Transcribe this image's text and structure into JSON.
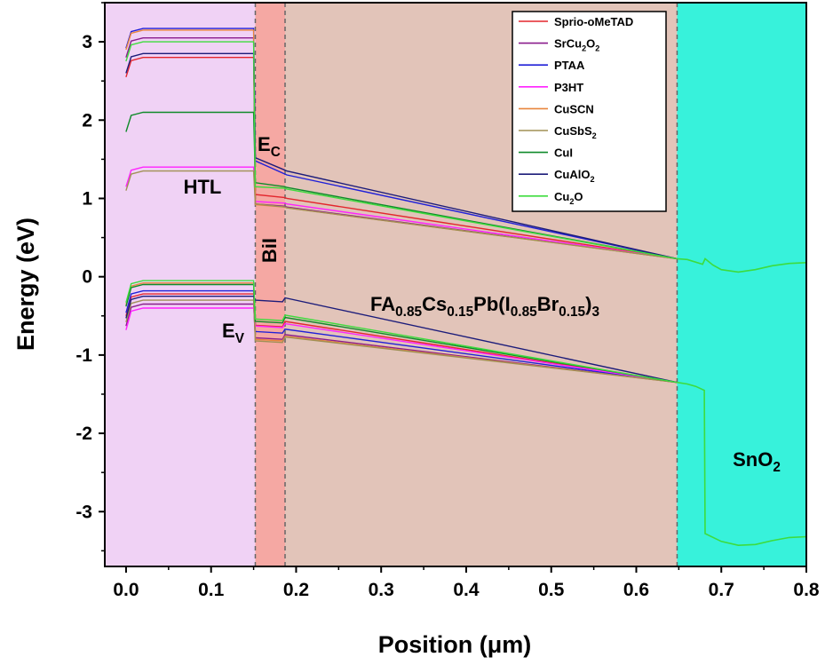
{
  "chart_data": {
    "type": "line",
    "title": "",
    "xlabel": "Position (μm)",
    "ylabel": "Energy (eV)",
    "xlim": [
      -0.025,
      0.8
    ],
    "ylim": [
      -3.7,
      3.5
    ],
    "xticks": [
      0.0,
      0.1,
      0.2,
      0.3,
      0.4,
      0.5,
      0.6,
      0.7,
      0.8
    ],
    "xtick_labels": [
      "0.0",
      "0.1",
      "0.2",
      "0.3",
      "0.4",
      "0.5",
      "0.6",
      "0.7",
      "0.8"
    ],
    "yticks": [
      -3,
      -2,
      -1,
      0,
      1,
      2,
      3
    ],
    "ytick_labels": [
      "-3",
      "-2",
      "-1",
      "0",
      "1",
      "2",
      "3"
    ],
    "grid": false,
    "legend_position": "top-right",
    "regions": [
      {
        "key": "htl",
        "x0": -0.025,
        "x1": 0.152,
        "color": "#f0d2f5",
        "label": "HTL"
      },
      {
        "key": "bil",
        "x0": 0.152,
        "x1": 0.187,
        "color": "#f5a8a3",
        "label": "BiI"
      },
      {
        "key": "perovskite",
        "x0": 0.187,
        "x1": 0.648,
        "color": "#e2c4b9",
        "label": "FA0.85Cs0.15Pb(I0.85Br0.15)3"
      },
      {
        "key": "etl",
        "x0": 0.648,
        "x1": 0.8,
        "color": "#37f2db",
        "label": "SnO2"
      }
    ],
    "annotations": [
      {
        "key": "ec",
        "text": "EC"
      },
      {
        "key": "ev",
        "text": "EV"
      }
    ],
    "series": [
      {
        "name": "Sprio-oMeTAD",
        "color": "#e3262d",
        "htl_ec": 2.8,
        "htl_ev": -0.22,
        "bil_ec": 1.05,
        "bil_ev": -0.62,
        "pero_ec": 1.0,
        "pero_ev": -0.57
      },
      {
        "name": "SrCu2O2",
        "color": "#8a1c8c",
        "htl_ec": 3.05,
        "htl_ev": -0.35,
        "bil_ec": 0.93,
        "bil_ev": -0.78,
        "pero_ec": 0.89,
        "pero_ev": -0.74
      },
      {
        "name": "PTAA",
        "color": "#2020d8",
        "htl_ec": 3.17,
        "htl_ev": -0.18,
        "bil_ec": 1.48,
        "bil_ev": -0.7,
        "pero_ec": 1.3,
        "pero_ev": -0.67
      },
      {
        "name": "P3HT",
        "color": "#ff22ff",
        "htl_ec": 1.4,
        "htl_ev": -0.4,
        "bil_ec": 0.96,
        "bil_ev": -0.63,
        "pero_ec": 0.93,
        "pero_ev": -0.6
      },
      {
        "name": "CuSCN",
        "color": "#e8853c",
        "htl_ec": 3.15,
        "htl_ev": -0.08,
        "bil_ec": 0.92,
        "bil_ev": -0.8,
        "pero_ec": 0.88,
        "pero_ev": -0.76
      },
      {
        "name": "CuSbS2",
        "color": "#a09055",
        "htl_ec": 1.35,
        "htl_ev": -0.3,
        "bil_ec": 0.93,
        "bil_ev": -0.82,
        "pero_ec": 0.88,
        "pero_ev": -0.77
      },
      {
        "name": "CuI",
        "color": "#0f8a2a",
        "htl_ec": 2.1,
        "htl_ev": -0.1,
        "bil_ec": 1.2,
        "bil_ev": -0.57,
        "pero_ec": 1.14,
        "pero_ev": -0.52
      },
      {
        "name": "CuAlO2",
        "color": "#1c1c7a",
        "htl_ec": 2.85,
        "htl_ev": -0.25,
        "bil_ec": 1.52,
        "bil_ev": -0.3,
        "pero_ec": 1.35,
        "pero_ev": -0.27
      },
      {
        "name": "Cu2O",
        "color": "#3ddc3d",
        "htl_ec": 3.0,
        "htl_ev": -0.05,
        "bil_ec": 1.15,
        "bil_ev": -0.54,
        "pero_ec": 1.12,
        "pero_ev": -0.49
      }
    ],
    "etl_conduction": [
      [
        0.648,
        0.23
      ],
      [
        0.66,
        0.22
      ],
      [
        0.678,
        0.16
      ],
      [
        0.681,
        0.23
      ],
      [
        0.69,
        0.15
      ],
      [
        0.7,
        0.09
      ],
      [
        0.72,
        0.06
      ],
      [
        0.74,
        0.09
      ],
      [
        0.76,
        0.14
      ],
      [
        0.78,
        0.17
      ],
      [
        0.8,
        0.18
      ]
    ],
    "etl_valence": [
      [
        0.648,
        -1.35
      ],
      [
        0.66,
        -1.37
      ],
      [
        0.67,
        -1.4
      ],
      [
        0.68,
        -1.45
      ],
      [
        0.681,
        -3.28
      ],
      [
        0.7,
        -3.38
      ],
      [
        0.72,
        -3.43
      ],
      [
        0.74,
        -3.42
      ],
      [
        0.76,
        -3.37
      ],
      [
        0.78,
        -3.33
      ],
      [
        0.8,
        -3.32
      ]
    ]
  }
}
